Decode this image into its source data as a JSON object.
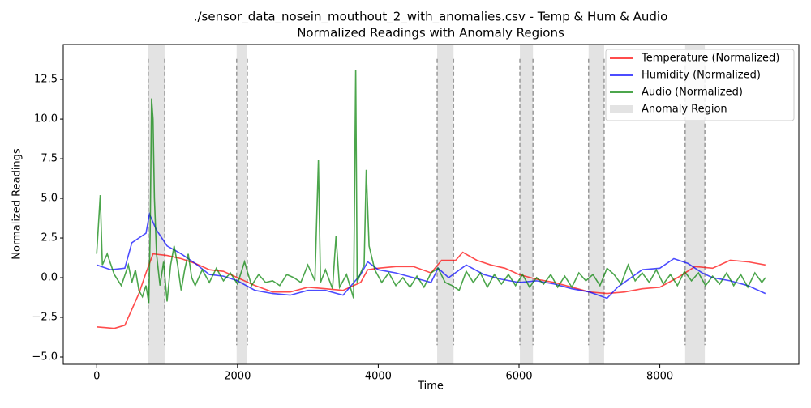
{
  "chart_data": {
    "type": "line",
    "title": [
      "./sensor_data_nosein_mouthout_2_with_anomalies.csv - Temp & Hum & Audio",
      "Normalized Readings with Anomaly Regions"
    ],
    "x_label": "Time",
    "y_label": "Normalized Readings",
    "xlim": [
      -475,
      9975
    ],
    "ylim": [
      -5.46,
      14.7
    ],
    "xticks": [
      0,
      2000,
      4000,
      6000,
      8000
    ],
    "yticks": [
      {
        "value": -5,
        "label": "−5.0"
      },
      {
        "value": -2.5,
        "label": "−2.5"
      },
      {
        "value": 0,
        "label": "0.0"
      },
      {
        "value": 2.5,
        "label": "2.5"
      },
      {
        "value": 5,
        "label": "5.0"
      },
      {
        "value": 7.5,
        "label": "7.5"
      },
      {
        "value": 10,
        "label": "10.0"
      },
      {
        "value": 12.5,
        "label": "12.5"
      }
    ],
    "grid": false,
    "legend": "upper right",
    "line_alpha": 0.7,
    "series": [
      {
        "name": "Temperature (Normalized)",
        "color": "red",
        "x": [
          0,
          250,
          400,
          500,
          600,
          700,
          800,
          1000,
          1200,
          1400,
          1600,
          1800,
          2000,
          2250,
          2500,
          2750,
          3000,
          3250,
          3500,
          3750,
          3850,
          4000,
          4250,
          4500,
          4750,
          4900,
          5000,
          5100,
          5200,
          5400,
          5600,
          5800,
          6000,
          6250,
          6500,
          6750,
          7000,
          7250,
          7500,
          7750,
          8000,
          8250,
          8500,
          8750,
          9000,
          9250,
          9500
        ],
        "values": [
          -3.1,
          -3.2,
          -3.0,
          -2.0,
          -1.0,
          0.3,
          1.5,
          1.4,
          1.2,
          0.9,
          0.5,
          0.4,
          0.0,
          -0.5,
          -0.9,
          -0.9,
          -0.6,
          -0.7,
          -0.8,
          -0.3,
          0.5,
          0.6,
          0.7,
          0.7,
          0.3,
          1.1,
          1.1,
          1.1,
          1.6,
          1.1,
          0.8,
          0.6,
          0.2,
          -0.1,
          -0.3,
          -0.6,
          -0.9,
          -1.0,
          -0.9,
          -0.7,
          -0.6,
          0.0,
          0.7,
          0.6,
          1.1,
          1.0,
          0.8
        ]
      },
      {
        "name": "Humidity (Normalized)",
        "color": "blue",
        "x": [
          0,
          200,
          400,
          500,
          600,
          700,
          750,
          850,
          1000,
          1200,
          1400,
          1600,
          1800,
          2000,
          2250,
          2500,
          2750,
          3000,
          3250,
          3500,
          3750,
          3850,
          4000,
          4250,
          4500,
          4750,
          4850,
          5000,
          5250,
          5500,
          5750,
          6000,
          6250,
          6500,
          6750,
          7000,
          7250,
          7400,
          7750,
          8000,
          8200,
          8400,
          8600,
          8750,
          9000,
          9250,
          9500
        ],
        "values": [
          0.8,
          0.5,
          0.6,
          2.2,
          2.5,
          2.8,
          4.0,
          3.0,
          2.0,
          1.5,
          0.9,
          0.2,
          0.1,
          -0.2,
          -0.8,
          -1.0,
          -1.1,
          -0.8,
          -0.8,
          -1.1,
          0.2,
          1.0,
          0.5,
          0.3,
          0.0,
          -0.3,
          0.6,
          0.0,
          0.8,
          0.2,
          -0.1,
          -0.3,
          -0.2,
          -0.4,
          -0.7,
          -0.9,
          -1.3,
          -0.6,
          0.5,
          0.6,
          1.2,
          0.9,
          0.3,
          0.0,
          -0.2,
          -0.5,
          -1.0
        ]
      },
      {
        "name": "Audio (Normalized)",
        "color": "green",
        "x": [
          0,
          20,
          50,
          80,
          150,
          250,
          350,
          450,
          500,
          550,
          600,
          650,
          700,
          740,
          760,
          780,
          800,
          820,
          850,
          900,
          950,
          1000,
          1050,
          1100,
          1150,
          1200,
          1250,
          1300,
          1350,
          1400,
          1500,
          1600,
          1700,
          1800,
          1900,
          2000,
          2100,
          2200,
          2300,
          2400,
          2500,
          2600,
          2700,
          2800,
          2900,
          3000,
          3100,
          3150,
          3180,
          3250,
          3350,
          3400,
          3450,
          3550,
          3650,
          3680,
          3700,
          3750,
          3800,
          3830,
          3870,
          3950,
          4050,
          4150,
          4250,
          4350,
          4450,
          4550,
          4650,
          4750,
          4850,
          4950,
          5050,
          5150,
          5250,
          5350,
          5450,
          5550,
          5650,
          5750,
          5850,
          5950,
          6050,
          6150,
          6250,
          6350,
          6450,
          6550,
          6650,
          6750,
          6850,
          6950,
          7050,
          7150,
          7250,
          7350,
          7450,
          7550,
          7650,
          7750,
          7850,
          7950,
          8050,
          8150,
          8250,
          8350,
          8450,
          8550,
          8650,
          8750,
          8850,
          8950,
          9050,
          9150,
          9250,
          9350,
          9450,
          9500
        ],
        "values": [
          1.5,
          3.0,
          5.2,
          0.8,
          1.5,
          0.2,
          -0.5,
          0.8,
          -0.3,
          0.5,
          -0.8,
          -1.2,
          -0.5,
          -1.6,
          3.0,
          11.3,
          10.0,
          5.0,
          1.5,
          -0.5,
          1.0,
          -1.5,
          0.8,
          2.0,
          0.8,
          -0.8,
          0.5,
          1.5,
          0.0,
          -0.5,
          0.5,
          -0.3,
          0.6,
          -0.2,
          0.3,
          -0.4,
          1.0,
          -0.5,
          0.2,
          -0.3,
          -0.2,
          -0.5,
          0.2,
          0.0,
          -0.3,
          0.8,
          -0.2,
          7.4,
          -0.3,
          0.5,
          -0.7,
          2.6,
          -0.6,
          0.2,
          -1.3,
          13.1,
          -0.3,
          0.3,
          0.8,
          6.8,
          2.0,
          0.5,
          -0.3,
          0.3,
          -0.5,
          0.0,
          -0.6,
          0.1,
          -0.6,
          0.3,
          0.6,
          -0.3,
          -0.5,
          -0.8,
          0.4,
          -0.3,
          0.3,
          -0.6,
          0.2,
          -0.4,
          0.2,
          -0.5,
          0.2,
          -0.6,
          0.0,
          -0.4,
          0.2,
          -0.6,
          0.1,
          -0.6,
          0.3,
          -0.2,
          0.2,
          -0.5,
          0.6,
          0.2,
          -0.4,
          0.8,
          -0.2,
          0.3,
          -0.3,
          0.5,
          -0.4,
          0.2,
          -0.5,
          0.4,
          -0.2,
          0.3,
          -0.5,
          0.1,
          -0.4,
          0.3,
          -0.5,
          0.2,
          -0.6,
          0.3,
          -0.3,
          0.0
        ]
      }
    ],
    "anomaly_label": "Anomaly Region",
    "anomaly_color": "gray",
    "anomaly_alpha": 0.22,
    "anomaly_regions": [
      [
        733,
        965
      ],
      [
        1988,
        2140
      ],
      [
        4837,
        5070
      ],
      [
        6012,
        6198
      ],
      [
        6988,
        7209
      ],
      [
        8360,
        8640
      ]
    ]
  }
}
